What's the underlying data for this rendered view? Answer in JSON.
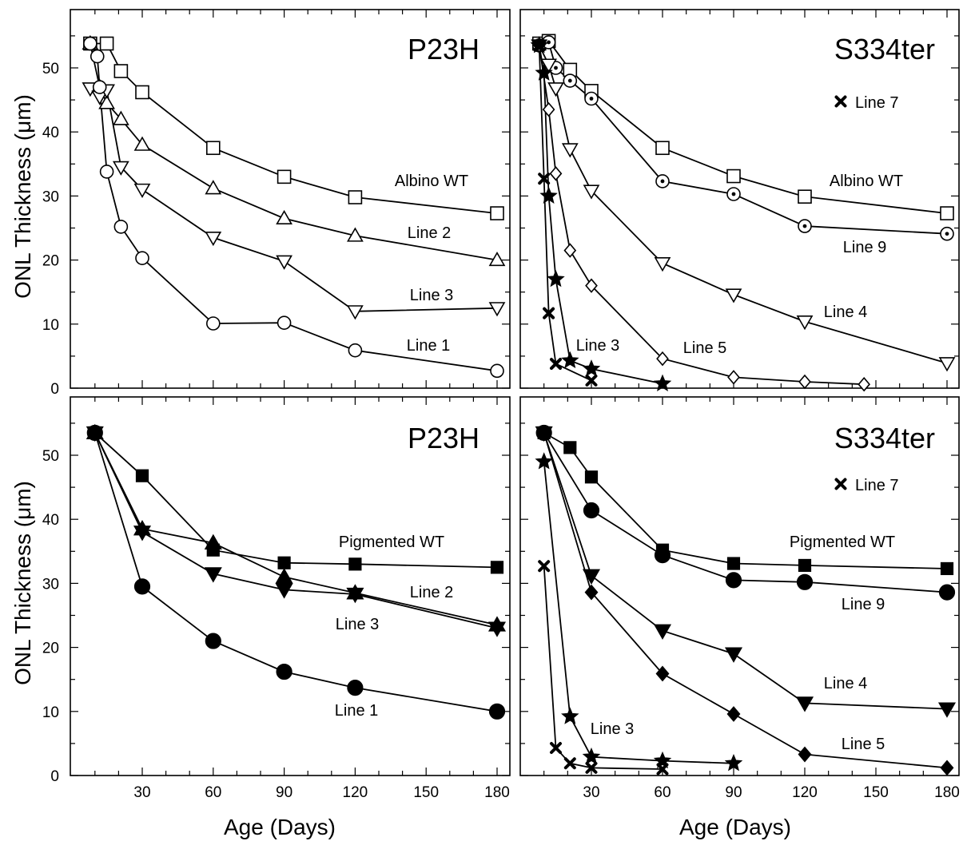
{
  "figure": {
    "ylabel": "ONL Thickness (μm)",
    "xlabel": "Age (Days)"
  },
  "chart_data": [
    {
      "type": "line",
      "title": "P23H",
      "marker_fill": "open",
      "xlim": [
        0,
        182
      ],
      "ylim": [
        0,
        56
      ],
      "xticks": [
        30,
        60,
        90,
        120,
        150,
        180
      ],
      "yticks": [
        0,
        10,
        20,
        30,
        40,
        50
      ],
      "xtick_labels_shown": false,
      "ytick_labels_shown": true,
      "series": [
        {
          "name": "Albino WT",
          "marker": "square",
          "x": [
            8,
            15,
            21,
            30,
            60,
            90,
            120,
            180
          ],
          "y": [
            53.8,
            53.8,
            49.5,
            46.2,
            37.5,
            33.0,
            29.8,
            27.3
          ]
        },
        {
          "name": "Line 2",
          "marker": "triangle-up",
          "x": [
            8,
            12,
            15,
            21,
            30,
            60,
            90,
            120,
            180
          ],
          "y": [
            53.8,
            47.0,
            44.5,
            42.0,
            38.0,
            31.2,
            26.5,
            23.8,
            20.0
          ]
        },
        {
          "name": "Line 3",
          "marker": "triangle-down",
          "x": [
            8,
            12,
            15,
            21,
            30,
            60,
            90,
            120,
            180
          ],
          "y": [
            46.8,
            45.5,
            46.5,
            34.5,
            31.0,
            23.5,
            19.8,
            12.0,
            12.5
          ]
        },
        {
          "name": "Line 1",
          "marker": "circle",
          "x": [
            8,
            11,
            12,
            15,
            21,
            30,
            60,
            90,
            120,
            180
          ],
          "y": [
            53.8,
            51.8,
            47.0,
            33.8,
            25.2,
            20.3,
            10.1,
            10.2,
            5.9,
            2.7
          ]
        }
      ],
      "legend_entries": []
    },
    {
      "type": "line",
      "title": "S334ter",
      "marker_fill": "open",
      "xlim": [
        0,
        182
      ],
      "ylim": [
        0,
        56
      ],
      "xticks": [
        30,
        60,
        90,
        120,
        150,
        180
      ],
      "yticks": [
        0,
        10,
        20,
        30,
        40,
        50
      ],
      "xtick_labels_shown": false,
      "ytick_labels_shown": false,
      "series": [
        {
          "name": "Albino WT",
          "marker": "square",
          "x": [
            8,
            12,
            21,
            30,
            60,
            90,
            120,
            180
          ],
          "y": [
            53.8,
            54.2,
            49.7,
            46.4,
            37.5,
            33.1,
            29.9,
            27.3
          ]
        },
        {
          "name": "Line 9",
          "marker": "circle-dot",
          "x": [
            8,
            12,
            15,
            21,
            30,
            60,
            90,
            120,
            180
          ],
          "y": [
            53.5,
            54.0,
            50.0,
            48.0,
            45.2,
            32.3,
            30.3,
            25.3,
            24.1
          ]
        },
        {
          "name": "Line 4",
          "marker": "triangle-down",
          "x": [
            8,
            12,
            15,
            21,
            30,
            60,
            90,
            120,
            180
          ],
          "y": [
            53.5,
            50.5,
            46.8,
            37.3,
            30.8,
            19.5,
            14.6,
            10.4,
            3.9
          ]
        },
        {
          "name": "Line 5",
          "marker": "diamond",
          "x": [
            8,
            12,
            15,
            21,
            30,
            60,
            90,
            120,
            145
          ],
          "y": [
            53.5,
            43.5,
            33.5,
            21.5,
            16.0,
            4.6,
            1.7,
            1.0,
            0.6
          ]
        },
        {
          "name": "Line 3",
          "marker": "star",
          "x": [
            8,
            10,
            12,
            15,
            21,
            30,
            60
          ],
          "y": [
            53.5,
            49.2,
            30.0,
            17.0,
            4.3,
            3.0,
            0.7
          ]
        },
        {
          "name": "Line 7",
          "marker": "x",
          "x": [
            8,
            10,
            12,
            15,
            30
          ],
          "y": [
            53.5,
            32.7,
            11.7,
            3.8,
            1.2
          ]
        }
      ],
      "legend_entries": [
        {
          "marker": "x",
          "label": "Line 7"
        }
      ]
    },
    {
      "type": "line",
      "title": "P23H",
      "marker_fill": "filled",
      "xlim": [
        0,
        182
      ],
      "ylim": [
        0,
        56
      ],
      "xticks": [
        30,
        60,
        90,
        120,
        150,
        180
      ],
      "yticks": [
        0,
        10,
        20,
        30,
        40,
        50
      ],
      "xtick_labels_shown": true,
      "ytick_labels_shown": true,
      "series": [
        {
          "name": "Pigmented WT",
          "marker": "square",
          "x": [
            10,
            30,
            60,
            90,
            120,
            180
          ],
          "y": [
            53.5,
            46.8,
            35.2,
            33.2,
            33.0,
            32.5
          ]
        },
        {
          "name": "Line 2",
          "marker": "triangle-up",
          "x": [
            10,
            30,
            60,
            90,
            120,
            180
          ],
          "y": [
            53.5,
            38.5,
            36.3,
            31.0,
            28.5,
            23.5
          ]
        },
        {
          "name": "Line 3",
          "marker": "triangle-down",
          "x": [
            10,
            30,
            60,
            90,
            120,
            180
          ],
          "y": [
            53.5,
            38.0,
            31.5,
            29.0,
            28.3,
            23.0
          ]
        },
        {
          "name": "Line 1",
          "marker": "circle",
          "x": [
            10,
            30,
            60,
            90,
            120,
            180
          ],
          "y": [
            53.5,
            29.5,
            21.0,
            16.2,
            13.7,
            10.0
          ]
        }
      ],
      "legend_entries": []
    },
    {
      "type": "line",
      "title": "S334ter",
      "marker_fill": "filled",
      "xlim": [
        0,
        182
      ],
      "ylim": [
        0,
        56
      ],
      "xticks": [
        30,
        60,
        90,
        120,
        150,
        180
      ],
      "yticks": [
        0,
        10,
        20,
        30,
        40,
        50
      ],
      "xtick_labels_shown": true,
      "ytick_labels_shown": false,
      "series": [
        {
          "name": "Pigmented WT",
          "marker": "square",
          "x": [
            10,
            21,
            30,
            60,
            90,
            120,
            180
          ],
          "y": [
            53.5,
            51.2,
            46.6,
            35.2,
            33.1,
            32.8,
            32.3
          ]
        },
        {
          "name": "Line 9",
          "marker": "circle",
          "x": [
            10,
            30,
            60,
            90,
            120,
            180
          ],
          "y": [
            53.5,
            41.4,
            34.4,
            30.5,
            30.2,
            28.6
          ]
        },
        {
          "name": "Line 4",
          "marker": "triangle-down",
          "x": [
            10,
            30,
            60,
            90,
            120,
            180
          ],
          "y": [
            53.5,
            31.2,
            22.6,
            19.0,
            11.3,
            10.4
          ]
        },
        {
          "name": "Line 5",
          "marker": "diamond",
          "x": [
            10,
            30,
            60,
            90,
            120,
            180
          ],
          "y": [
            53.5,
            28.6,
            15.9,
            9.6,
            3.3,
            1.2
          ]
        },
        {
          "name": "Line 3",
          "marker": "star",
          "x": [
            10,
            21,
            30,
            60,
            90
          ],
          "y": [
            49.0,
            9.2,
            2.9,
            2.3,
            1.9
          ]
        },
        {
          "name": "Line 7",
          "marker": "x",
          "x": [
            10,
            15,
            21,
            30,
            60
          ],
          "y": [
            32.7,
            4.3,
            1.9,
            1.2,
            1.0
          ]
        }
      ],
      "legend_entries": [
        {
          "marker": "x",
          "label": "Line 7"
        }
      ]
    }
  ]
}
